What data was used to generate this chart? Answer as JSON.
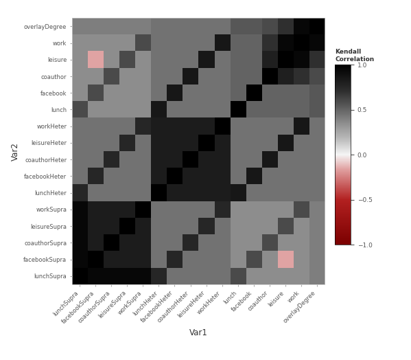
{
  "var_names_y": [
    "overlayDegree",
    "work",
    "leisure",
    "coauthor",
    "facebook",
    "lunch",
    "workHeter",
    "leisureHeter",
    "coauthorHeter",
    "facebookHeter",
    "lunchHeter",
    "workSupra",
    "leisureSupra",
    "coauthorSupra",
    "facebookSupra",
    "lunchSupra"
  ],
  "var_names_x": [
    "lunchSupra",
    "facebookSupra",
    "coauthorSupra",
    "leisureSupra",
    "workSupra",
    "lunchHeter",
    "facebookHeter",
    "coauthorHeter",
    "leisureHeter",
    "workHeter",
    "lunch",
    "facebook",
    "coauthor",
    "leisure",
    "work",
    "overlayDegree"
  ],
  "xlabel": "Var1",
  "ylabel": "Var2",
  "legend_title": "Kendall\nCorrelation",
  "legend_ticks": [
    1.0,
    0.5,
    0.0,
    -0.5,
    -1.0
  ],
  "vmin": -1.0,
  "vmax": 1.0
}
